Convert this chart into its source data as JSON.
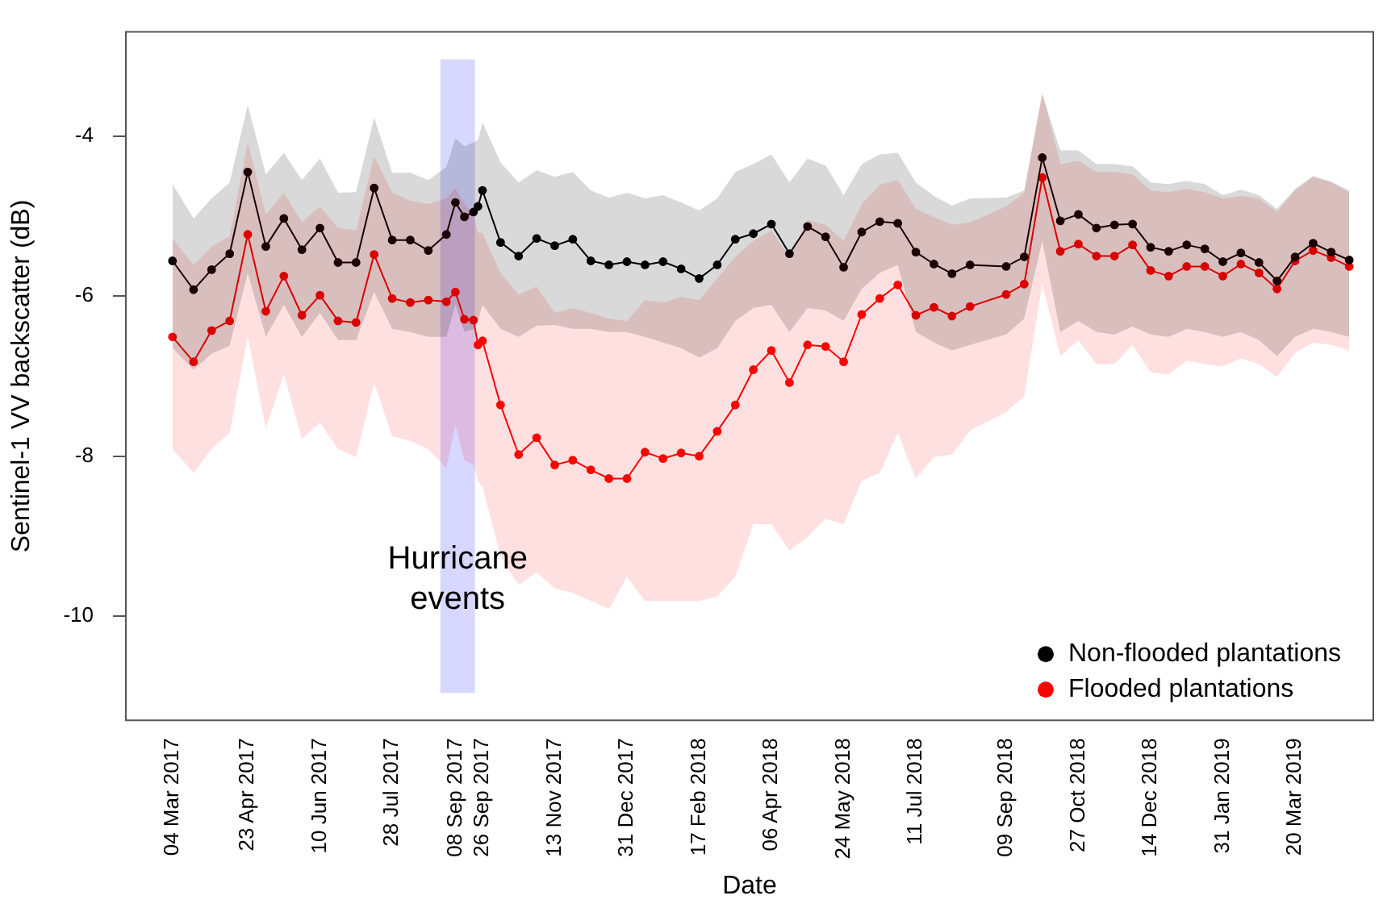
{
  "chart_data": {
    "type": "line",
    "xlabel": "Date",
    "ylabel": "Sentinel-1 VV backscatter (dB)",
    "x": [
      "2017-03-04",
      "2017-03-18",
      "2017-03-30",
      "2017-04-11",
      "2017-04-23",
      "2017-05-05",
      "2017-05-17",
      "2017-05-29",
      "2017-06-10",
      "2017-06-22",
      "2017-07-04",
      "2017-07-16",
      "2017-07-28",
      "2017-08-09",
      "2017-08-21",
      "2017-09-02",
      "2017-09-08",
      "2017-09-14",
      "2017-09-20",
      "2017-09-23",
      "2017-09-26",
      "2017-10-08",
      "2017-10-20",
      "2017-11-01",
      "2017-11-13",
      "2017-11-25",
      "2017-12-07",
      "2017-12-19",
      "2017-12-31",
      "2018-01-12",
      "2018-01-24",
      "2018-02-05",
      "2018-02-17",
      "2018-03-01",
      "2018-03-13",
      "2018-03-25",
      "2018-04-06",
      "2018-04-18",
      "2018-04-30",
      "2018-05-12",
      "2018-05-24",
      "2018-06-05",
      "2018-06-17",
      "2018-06-29",
      "2018-07-11",
      "2018-07-23",
      "2018-08-04",
      "2018-08-16",
      "2018-09-09",
      "2018-09-21",
      "2018-10-03",
      "2018-10-15",
      "2018-10-27",
      "2018-11-08",
      "2018-11-20",
      "2018-12-02",
      "2018-12-14",
      "2018-12-26",
      "2019-01-07",
      "2019-01-19",
      "2019-01-31",
      "2019-02-12",
      "2019-02-24",
      "2019-03-08",
      "2019-03-20",
      "2019-04-01",
      "2019-04-13",
      "2019-04-25"
    ],
    "series": [
      {
        "name": "Non-flooded plantations",
        "color": "#000000",
        "values": [
          -5.56,
          -5.92,
          -5.67,
          -5.47,
          -4.45,
          -5.38,
          -5.03,
          -5.42,
          -5.15,
          -5.58,
          -5.58,
          -4.65,
          -5.3,
          -5.3,
          -5.43,
          -5.23,
          -4.83,
          -5.01,
          -4.95,
          -4.88,
          -4.68,
          -5.33,
          -5.5,
          -5.28,
          -5.37,
          -5.29,
          -5.56,
          -5.61,
          -5.57,
          -5.61,
          -5.57,
          -5.66,
          -5.78,
          -5.61,
          -5.29,
          -5.22,
          -5.1,
          -5.47,
          -5.13,
          -5.26,
          -5.64,
          -5.2,
          -5.07,
          -5.09,
          -5.45,
          -5.6,
          -5.72,
          -5.61,
          -5.63,
          -5.51,
          -4.27,
          -5.06,
          -4.98,
          -5.15,
          -5.11,
          -5.1,
          -5.39,
          -5.44,
          -5.36,
          -5.41,
          -5.57,
          -5.46,
          -5.58,
          -5.81,
          -5.51,
          -5.34,
          -5.45,
          -5.55
        ],
        "upper": [
          -4.6,
          -5.03,
          -4.78,
          -4.58,
          -3.61,
          -4.48,
          -4.21,
          -4.55,
          -4.28,
          -4.71,
          -4.7,
          -3.77,
          -4.46,
          -4.46,
          -4.55,
          -4.39,
          -4.03,
          -4.13,
          -4.08,
          -4.05,
          -3.83,
          -4.33,
          -4.58,
          -4.43,
          -4.51,
          -4.45,
          -4.68,
          -4.77,
          -4.71,
          -4.78,
          -4.74,
          -4.83,
          -4.93,
          -4.78,
          -4.45,
          -4.35,
          -4.23,
          -4.58,
          -4.28,
          -4.37,
          -4.74,
          -4.35,
          -4.23,
          -4.21,
          -4.58,
          -4.75,
          -4.87,
          -4.78,
          -4.77,
          -4.68,
          -3.48,
          -4.18,
          -4.18,
          -4.35,
          -4.35,
          -4.38,
          -4.58,
          -4.6,
          -4.56,
          -4.6,
          -4.74,
          -4.67,
          -4.74,
          -4.91,
          -4.66,
          -4.5,
          -4.57,
          -4.68
        ],
        "lower": [
          -6.65,
          -6.92,
          -6.72,
          -6.62,
          -5.71,
          -6.51,
          -6.11,
          -6.51,
          -6.21,
          -6.55,
          -6.55,
          -5.95,
          -6.41,
          -6.45,
          -6.51,
          -6.51,
          -6.11,
          -6.45,
          -6.41,
          -6.31,
          -6.11,
          -6.41,
          -6.51,
          -6.37,
          -6.36,
          -6.41,
          -6.41,
          -6.45,
          -6.45,
          -6.51,
          -6.58,
          -6.65,
          -6.77,
          -6.65,
          -6.31,
          -6.15,
          -6.11,
          -6.45,
          -6.15,
          -6.18,
          -6.31,
          -5.91,
          -5.71,
          -5.61,
          -6.45,
          -6.58,
          -6.68,
          -6.61,
          -6.48,
          -6.28,
          -5.31,
          -6.45,
          -6.31,
          -6.45,
          -6.48,
          -6.38,
          -6.48,
          -6.51,
          -6.41,
          -6.45,
          -6.51,
          -6.45,
          -6.55,
          -6.75,
          -6.51,
          -6.41,
          -6.45,
          -6.51
        ]
      },
      {
        "name": "Flooded plantations",
        "color": "#ff0000",
        "values": [
          -6.51,
          -6.82,
          -6.43,
          -6.31,
          -5.23,
          -6.19,
          -5.75,
          -6.24,
          -5.99,
          -6.31,
          -6.33,
          -5.48,
          -6.03,
          -6.08,
          -6.05,
          -6.07,
          -5.95,
          -6.29,
          -6.3,
          -6.61,
          -6.56,
          -7.36,
          -7.98,
          -7.77,
          -8.11,
          -8.05,
          -8.17,
          -8.28,
          -8.28,
          -7.95,
          -8.03,
          -7.96,
          -8.0,
          -7.69,
          -7.36,
          -6.92,
          -6.68,
          -7.08,
          -6.61,
          -6.63,
          -6.82,
          -6.23,
          -6.03,
          -5.86,
          -6.24,
          -6.14,
          -6.25,
          -6.13,
          -5.98,
          -5.85,
          -4.52,
          -5.44,
          -5.35,
          -5.5,
          -5.5,
          -5.36,
          -5.68,
          -5.75,
          -5.63,
          -5.63,
          -5.75,
          -5.6,
          -5.71,
          -5.91,
          -5.56,
          -5.43,
          -5.52,
          -5.63
        ],
        "upper": [
          -5.28,
          -5.61,
          -5.38,
          -5.25,
          -4.08,
          -4.98,
          -4.71,
          -5.08,
          -4.88,
          -5.15,
          -5.18,
          -4.25,
          -4.71,
          -4.81,
          -4.85,
          -4.78,
          -4.65,
          -4.85,
          -4.98,
          -5.21,
          -5.21,
          -5.71,
          -5.98,
          -5.88,
          -6.21,
          -6.15,
          -6.21,
          -6.28,
          -6.31,
          -6.05,
          -6.08,
          -6.01,
          -6.05,
          -5.78,
          -5.51,
          -5.31,
          -5.18,
          -5.51,
          -5.05,
          -5.11,
          -5.31,
          -4.85,
          -4.61,
          -4.55,
          -4.91,
          -5.01,
          -5.11,
          -5.08,
          -4.88,
          -4.71,
          -3.45,
          -4.35,
          -4.31,
          -4.45,
          -4.45,
          -4.48,
          -4.68,
          -4.7,
          -4.66,
          -4.7,
          -4.78,
          -4.75,
          -4.78,
          -4.95,
          -4.68,
          -4.51,
          -4.58,
          -4.7
        ],
        "lower": [
          -7.91,
          -8.21,
          -7.91,
          -7.71,
          -6.51,
          -7.65,
          -6.98,
          -7.78,
          -7.58,
          -7.91,
          -8.01,
          -7.08,
          -7.75,
          -7.81,
          -7.91,
          -8.15,
          -7.61,
          -8.05,
          -8.11,
          -8.31,
          -8.38,
          -9.25,
          -9.61,
          -9.45,
          -9.65,
          -9.71,
          -9.81,
          -9.91,
          -9.51,
          -9.81,
          -9.81,
          -9.81,
          -9.81,
          -9.75,
          -9.51,
          -8.85,
          -8.85,
          -9.18,
          -9.01,
          -8.78,
          -8.85,
          -8.31,
          -8.21,
          -7.71,
          -8.28,
          -8.01,
          -7.98,
          -7.68,
          -7.45,
          -7.25,
          -5.85,
          -6.75,
          -6.55,
          -6.85,
          -6.85,
          -6.61,
          -6.95,
          -6.98,
          -6.81,
          -6.85,
          -6.88,
          -6.78,
          -6.85,
          -7.01,
          -6.71,
          -6.58,
          -6.61,
          -6.68
        ]
      }
    ],
    "xlim": [
      "2017-02-01",
      "2019-05-11"
    ],
    "xticks": [
      {
        "value": "2017-03-04",
        "label": "04 Mar 2017"
      },
      {
        "value": "2017-04-23",
        "label": "23 Apr 2017"
      },
      {
        "value": "2017-06-10",
        "label": "10 Jun 2017"
      },
      {
        "value": "2017-07-28",
        "label": "28 Jul 2017"
      },
      {
        "value": "2017-09-08",
        "label": "08 Sep 2017"
      },
      {
        "value": "2017-09-26",
        "label": "26 Sep 2017"
      },
      {
        "value": "2017-11-13",
        "label": "13 Nov 2017"
      },
      {
        "value": "2017-12-31",
        "label": "31 Dec 2017"
      },
      {
        "value": "2018-02-17",
        "label": "17 Feb 2018"
      },
      {
        "value": "2018-04-06",
        "label": "06 Apr 2018"
      },
      {
        "value": "2018-05-24",
        "label": "24 May 2018"
      },
      {
        "value": "2018-07-11",
        "label": "11 Jul 2018"
      },
      {
        "value": "2018-09-09",
        "label": "09 Sep 2018"
      },
      {
        "value": "2018-10-27",
        "label": "27 Oct 2018"
      },
      {
        "value": "2018-12-14",
        "label": "14 Dec 2018"
      },
      {
        "value": "2019-01-31",
        "label": "31 Jan 2019"
      },
      {
        "value": "2019-03-20",
        "label": "20 Mar 2019"
      }
    ],
    "ylim": [
      -11.3,
      -2.7
    ],
    "yticks": [
      -10,
      -8,
      -6,
      -4
    ],
    "bands": [
      {
        "axis": "x",
        "from": "2017-08-29",
        "to": "2017-09-21",
        "label": "Hurricane events",
        "color": "#9a9aff"
      }
    ],
    "grid": false,
    "legend": "bottom right",
    "marker": "circle",
    "line_style": "solid"
  }
}
